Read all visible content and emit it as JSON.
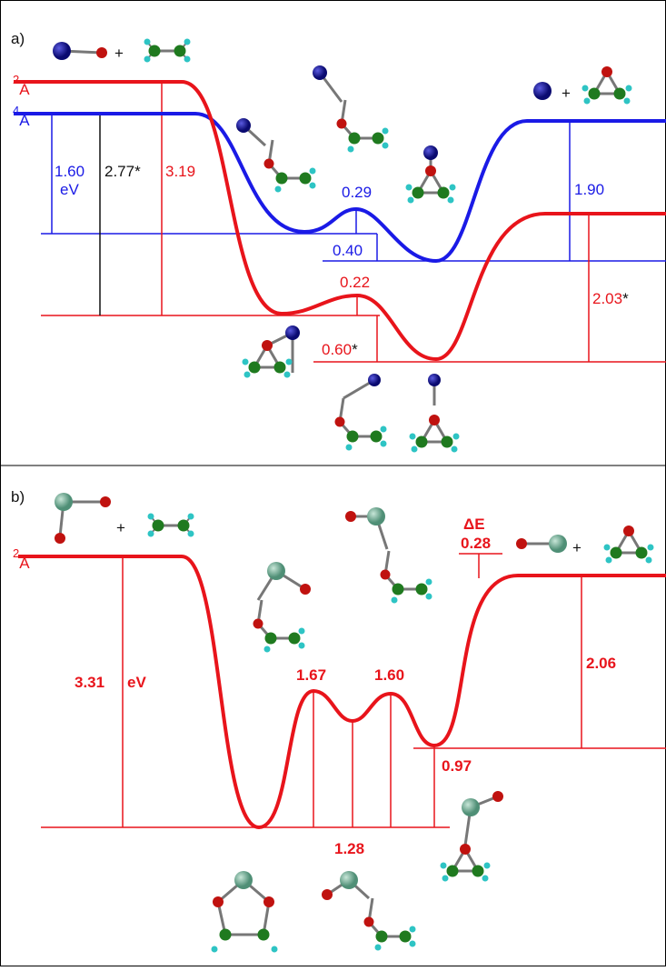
{
  "panel_a": {
    "label": "a)",
    "plus": "+",
    "states": {
      "doublet": {
        "multiplicity": "2",
        "symbol": "A"
      },
      "quartet": {
        "multiplicity": "4",
        "symbol": "A"
      }
    },
    "quartet_energies": {
      "reactant_gap": "1.60",
      "unit": "eV",
      "barrier": "0.29",
      "well_difference": "0.40",
      "product_gap": "1.90"
    },
    "crossing_energy": "2.77*",
    "doublet_energies": {
      "reactant_gap": "3.19",
      "barrier": "0.22",
      "well_difference": {
        "value": "0.60",
        "mark": "*"
      },
      "product_gap": {
        "value": "2.03",
        "mark": "*"
      }
    }
  },
  "panel_b": {
    "label": "b)",
    "plus": "+",
    "state": {
      "multiplicity": "2",
      "symbol": "A"
    },
    "delta_e": {
      "symbol": "ΔE",
      "value": "0.28"
    },
    "energies": {
      "reactant_gap": "3.31",
      "unit": "eV",
      "barrier_1": "1.67",
      "barrier_2": "1.60",
      "intermediate": "1.28",
      "well": "0.97",
      "product_gap": "2.06"
    }
  }
}
